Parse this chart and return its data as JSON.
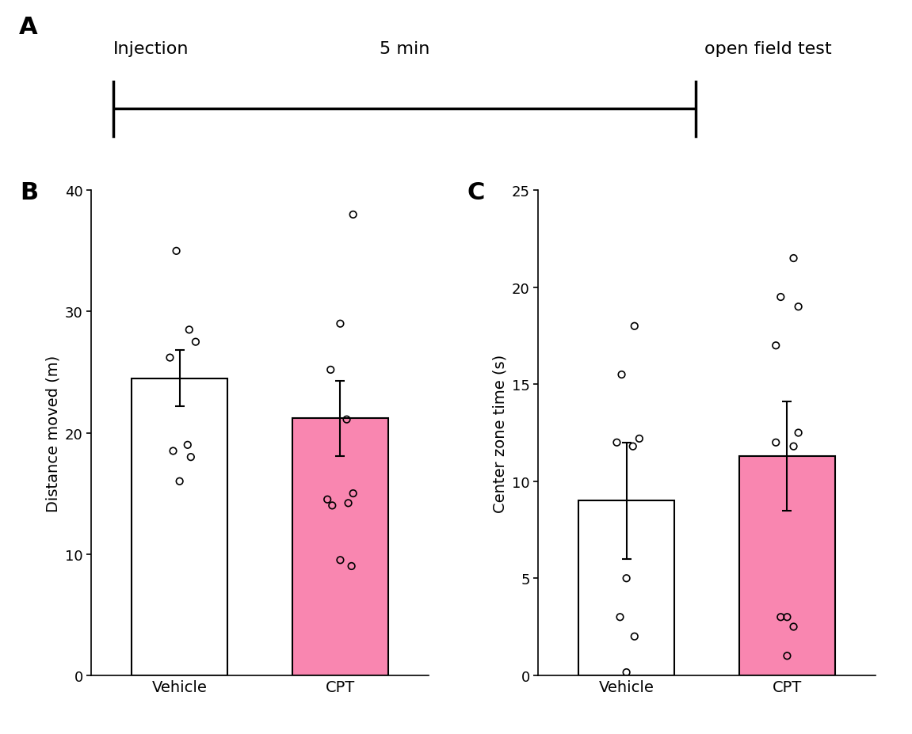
{
  "panel_A": {
    "label": "A",
    "text_left": "Injection",
    "text_mid": "5 min",
    "text_right": "open field test"
  },
  "panel_B": {
    "label": "B",
    "ylabel": "Distance moved (m)",
    "categories": [
      "Vehicle",
      "CPT"
    ],
    "bar_means": [
      24.5,
      21.2
    ],
    "bar_sem": [
      2.3,
      3.1
    ],
    "bar_colors": [
      "white",
      "#F986B0"
    ],
    "ylim": [
      0,
      40
    ],
    "yticks": [
      0,
      10,
      20,
      30,
      40
    ],
    "vehicle_dots_x": [
      -0.02,
      0.06,
      0.1,
      -0.06,
      0.05,
      -0.04,
      0.07,
      0.0
    ],
    "vehicle_dots_y": [
      35.0,
      28.5,
      27.5,
      26.2,
      19.0,
      18.5,
      18.0,
      16.0
    ],
    "cpt_dots_x": [
      0.08,
      0.0,
      -0.06,
      0.04,
      0.08,
      -0.08,
      0.05,
      -0.05,
      0.0,
      0.07
    ],
    "cpt_dots_y": [
      38.0,
      29.0,
      25.2,
      21.1,
      15.0,
      14.5,
      14.2,
      14.0,
      9.5,
      9.0
    ]
  },
  "panel_C": {
    "label": "C",
    "ylabel": "Center zone time (s)",
    "categories": [
      "Vehicle",
      "CPT"
    ],
    "bar_means": [
      9.0,
      11.3
    ],
    "bar_sem": [
      3.0,
      2.8
    ],
    "bar_colors": [
      "white",
      "#F986B0"
    ],
    "ylim": [
      0,
      25
    ],
    "yticks": [
      0,
      5,
      10,
      15,
      20,
      25
    ],
    "vehicle_dots_x": [
      0.05,
      -0.03,
      0.08,
      -0.06,
      0.04,
      0.0,
      -0.04,
      0.05,
      0.0
    ],
    "vehicle_dots_y": [
      18.0,
      15.5,
      12.2,
      12.0,
      11.8,
      5.0,
      3.0,
      2.0,
      0.15
    ],
    "cpt_dots_x": [
      0.04,
      -0.04,
      0.07,
      -0.07,
      0.07,
      -0.07,
      0.04,
      0.0,
      -0.04,
      0.04,
      0.0
    ],
    "cpt_dots_y": [
      21.5,
      19.5,
      19.0,
      17.0,
      12.5,
      12.0,
      11.8,
      3.0,
      3.0,
      2.5,
      1.0
    ]
  },
  "dot_size": 38,
  "bar_edge_color": "black",
  "bar_linewidth": 1.5,
  "error_linewidth": 1.5,
  "capsize": 4,
  "bar_width": 0.6
}
